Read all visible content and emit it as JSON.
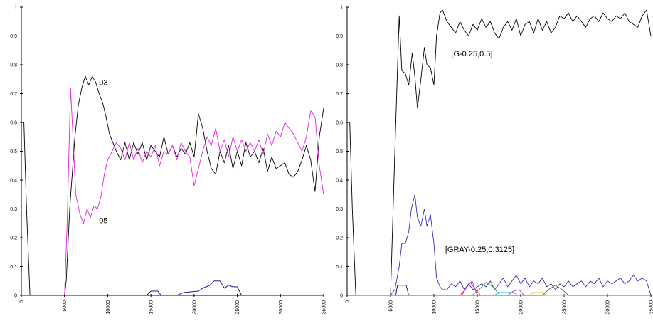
{
  "chart_data": [
    {
      "type": "line",
      "title": "",
      "xlabel": "",
      "ylabel": "",
      "xlim": [
        0,
        35000
      ],
      "ylim": [
        0,
        1
      ],
      "y_ticks": [
        "0",
        "0.1",
        "0.2",
        "0.3",
        "0.4",
        "0.5",
        "0.6",
        "0.7",
        "0.8",
        "0.9",
        "1"
      ],
      "x_ticks": [
        "0",
        "5000",
        "10000",
        "15000",
        "20000",
        "25000",
        "30000",
        "35000"
      ],
      "grid": false,
      "legend": "none",
      "annotations": [
        {
          "text": "03",
          "x": 9000,
          "y": 0.74
        },
        {
          "text": "05",
          "x": 9000,
          "y": 0.26
        }
      ],
      "series": [
        {
          "color": "#000000",
          "x": [
            0,
            300,
            600,
            1000,
            5000,
            5200,
            5600,
            6200,
            6600,
            7000,
            7400,
            7800,
            8200,
            8600,
            9000,
            9400,
            9800,
            10200,
            10600,
            11000,
            11500,
            12000,
            12500,
            13000,
            13500,
            14000,
            14500,
            15000,
            15500,
            16000,
            16500,
            17000,
            17500,
            18000,
            18500,
            19000,
            19500,
            20000,
            20500,
            21000,
            21500,
            22000,
            22500,
            23000,
            23500,
            24000,
            24500,
            25000,
            25500,
            26000,
            26500,
            27000,
            27500,
            28000,
            28500,
            29000,
            29500,
            30000,
            30500,
            31000,
            31500,
            32000,
            32500,
            33000,
            33500,
            34000,
            34500,
            35000
          ],
          "y": [
            0.6,
            0.6,
            0.3,
            0.0,
            0.0,
            0.05,
            0.3,
            0.55,
            0.66,
            0.72,
            0.76,
            0.73,
            0.76,
            0.74,
            0.7,
            0.67,
            0.62,
            0.56,
            0.53,
            0.5,
            0.47,
            0.53,
            0.47,
            0.53,
            0.49,
            0.53,
            0.47,
            0.52,
            0.5,
            0.48,
            0.55,
            0.49,
            0.52,
            0.48,
            0.51,
            0.49,
            0.53,
            0.48,
            0.63,
            0.58,
            0.5,
            0.44,
            0.42,
            0.5,
            0.46,
            0.52,
            0.44,
            0.5,
            0.45,
            0.53,
            0.48,
            0.5,
            0.46,
            0.51,
            0.43,
            0.48,
            0.44,
            0.45,
            0.46,
            0.42,
            0.41,
            0.43,
            0.47,
            0.52,
            0.47,
            0.36,
            0.55,
            0.65
          ]
        },
        {
          "color": "#e020e0",
          "x": [
            0,
            5000,
            5300,
            5700,
            6300,
            6800,
            7200,
            7600,
            8000,
            8400,
            8800,
            9200,
            9600,
            10000,
            10500,
            11000,
            11500,
            12000,
            12500,
            13000,
            13500,
            14000,
            14500,
            15000,
            15500,
            16000,
            16500,
            17000,
            17500,
            18000,
            18500,
            19000,
            19500,
            20000,
            20500,
            21000,
            21500,
            22000,
            22500,
            23000,
            23500,
            24000,
            24500,
            25000,
            25500,
            26000,
            26500,
            27000,
            27500,
            28000,
            28500,
            29000,
            29500,
            30000,
            30500,
            31000,
            31500,
            32000,
            32500,
            33000,
            33500,
            34000,
            34500,
            35000
          ],
          "y": [
            0.0,
            0.0,
            0.25,
            0.72,
            0.35,
            0.28,
            0.25,
            0.3,
            0.27,
            0.31,
            0.3,
            0.34,
            0.42,
            0.47,
            0.5,
            0.53,
            0.51,
            0.47,
            0.53,
            0.47,
            0.51,
            0.46,
            0.5,
            0.48,
            0.52,
            0.45,
            0.5,
            0.49,
            0.52,
            0.47,
            0.53,
            0.5,
            0.48,
            0.38,
            0.44,
            0.5,
            0.55,
            0.52,
            0.58,
            0.5,
            0.54,
            0.48,
            0.55,
            0.5,
            0.54,
            0.5,
            0.53,
            0.5,
            0.54,
            0.49,
            0.56,
            0.52,
            0.57,
            0.55,
            0.6,
            0.58,
            0.56,
            0.53,
            0.5,
            0.55,
            0.64,
            0.62,
            0.45,
            0.35
          ]
        },
        {
          "color": "#000080",
          "x": [
            0,
            14500,
            15000,
            15800,
            16200,
            18000,
            18800,
            20500,
            21000,
            21800,
            22300,
            23000,
            23500,
            24000,
            24500,
            25000,
            25500,
            35000
          ],
          "y": [
            0.0,
            0.0,
            0.015,
            0.015,
            0.0,
            0.0,
            0.01,
            0.015,
            0.025,
            0.035,
            0.05,
            0.05,
            0.025,
            0.035,
            0.03,
            0.03,
            0.0,
            0.0
          ]
        }
      ]
    },
    {
      "type": "line",
      "title": "",
      "xlabel": "",
      "ylabel": "",
      "xlim": [
        0,
        35000
      ],
      "ylim": [
        0,
        1
      ],
      "y_ticks": [
        "0",
        "0.1",
        "0.2",
        "0.3",
        "0.4",
        "0.5",
        "0.6",
        "0.7",
        "0.8",
        "0.9",
        "1"
      ],
      "x_ticks": [
        "0",
        "5000",
        "10000",
        "15000",
        "20000",
        "25000",
        "30000",
        "35000"
      ],
      "grid": false,
      "legend": "none",
      "annotations": [
        {
          "text": "[G-0.25,0.5]",
          "x": 12000,
          "y": 0.84
        },
        {
          "text": "[GRAY-0.25,0.3125]",
          "x": 11300,
          "y": 0.16
        }
      ],
      "series": [
        {
          "color": "#000000",
          "x": [
            0,
            300,
            600,
            1000,
            5000,
            5500,
            6000,
            6300,
            6700,
            7100,
            7500,
            7800,
            8100,
            8500,
            8900,
            9200,
            9600,
            10000,
            10300,
            10700,
            11000,
            11500,
            12000,
            12500,
            13000,
            13500,
            14000,
            14500,
            15000,
            15500,
            16000,
            16500,
            17000,
            17500,
            18000,
            18500,
            19000,
            19500,
            20000,
            20500,
            21000,
            21500,
            22000,
            22500,
            23000,
            23500,
            24000,
            24500,
            25000,
            25500,
            26000,
            26500,
            27000,
            27500,
            28000,
            28500,
            29000,
            29500,
            30000,
            30500,
            31000,
            31500,
            32000,
            32500,
            33000,
            33500,
            34000,
            34500,
            35000
          ],
          "y": [
            0.6,
            0.6,
            0.3,
            0.0,
            0.0,
            0.5,
            0.97,
            0.78,
            0.77,
            0.73,
            0.84,
            0.76,
            0.65,
            0.75,
            0.86,
            0.8,
            0.79,
            0.73,
            0.9,
            0.98,
            0.99,
            0.95,
            0.93,
            0.91,
            0.95,
            0.92,
            0.9,
            0.94,
            0.92,
            0.96,
            0.93,
            0.95,
            0.91,
            0.89,
            0.93,
            0.95,
            0.92,
            0.96,
            0.9,
            0.94,
            0.95,
            0.91,
            0.96,
            0.92,
            0.95,
            0.91,
            0.93,
            0.97,
            0.96,
            0.98,
            0.95,
            0.97,
            0.95,
            0.93,
            0.96,
            0.97,
            0.95,
            0.98,
            0.96,
            0.95,
            0.97,
            0.96,
            0.98,
            0.95,
            0.94,
            0.93,
            0.97,
            0.99,
            0.9
          ]
        },
        {
          "color": "#3030c0",
          "x": [
            0,
            5000,
            5500,
            6000,
            6300,
            6700,
            7100,
            7400,
            7800,
            8100,
            8500,
            8900,
            9200,
            9600,
            10000,
            10300,
            10700,
            11000,
            11500,
            12000,
            12500,
            13000,
            13500,
            14000,
            14500,
            15000,
            15500,
            16000,
            16500,
            17000,
            17500,
            18000,
            18500,
            19000,
            19500,
            20000,
            20500,
            21000,
            21500,
            22000,
            22500,
            23000,
            23500,
            24000,
            24500,
            25000,
            25500,
            26000,
            26500,
            27000,
            27500,
            28000,
            28500,
            29000,
            29500,
            30000,
            30500,
            31000,
            31500,
            32000,
            32500,
            33000,
            33500,
            34000,
            34500,
            35000
          ],
          "y": [
            0.0,
            0.0,
            0.02,
            0.1,
            0.18,
            0.18,
            0.22,
            0.3,
            0.35,
            0.27,
            0.24,
            0.3,
            0.24,
            0.28,
            0.18,
            0.06,
            0.03,
            0.02,
            0.02,
            0.04,
            0.03,
            0.05,
            0.02,
            0.04,
            0.02,
            0.03,
            0.04,
            0.03,
            0.05,
            0.02,
            0.04,
            0.06,
            0.03,
            0.05,
            0.07,
            0.04,
            0.06,
            0.03,
            0.05,
            0.04,
            0.06,
            0.03,
            0.04,
            0.02,
            0.04,
            0.03,
            0.05,
            0.03,
            0.04,
            0.05,
            0.03,
            0.05,
            0.04,
            0.06,
            0.03,
            0.05,
            0.04,
            0.05,
            0.06,
            0.04,
            0.05,
            0.07,
            0.05,
            0.06,
            0.05,
            0.0
          ]
        },
        {
          "color": "#000080",
          "x": [
            0,
            5600,
            5800,
            6800,
            7100,
            35000
          ],
          "y": [
            0.0,
            0.0,
            0.035,
            0.035,
            0.0,
            0.0
          ]
        },
        {
          "color": "#e02020",
          "x": [
            0,
            13000,
            13600,
            14200,
            14800,
            15400,
            35000
          ],
          "y": [
            0.0,
            0.0,
            0.02,
            0.045,
            0.02,
            0.0,
            0.0
          ]
        },
        {
          "color": "#20a020",
          "x": [
            0,
            14400,
            15200,
            16000,
            16800,
            17600,
            35000
          ],
          "y": [
            0.0,
            0.0,
            0.02,
            0.045,
            0.03,
            0.0,
            0.0
          ]
        },
        {
          "color": "#d020d0",
          "x": [
            0,
            13200,
            13800,
            14400,
            15000,
            18500,
            19200,
            19800,
            20400,
            35000
          ],
          "y": [
            0.0,
            0.0,
            0.03,
            0.05,
            0.0,
            0.0,
            0.015,
            0.02,
            0.0,
            0.0
          ]
        },
        {
          "color": "#00c0e0",
          "x": [
            0,
            17000,
            17400,
            19200,
            19600,
            35000
          ],
          "y": [
            0.0,
            0.0,
            0.01,
            0.01,
            0.0,
            0.0
          ]
        },
        {
          "color": "#e0c000",
          "x": [
            0,
            21000,
            21500,
            22500,
            23000,
            35000
          ],
          "y": [
            0.0,
            0.0,
            0.01,
            0.01,
            0.0,
            0.0
          ]
        },
        {
          "color": "#806000",
          "x": [
            0,
            22500,
            23200,
            24000,
            24800,
            25500,
            35000
          ],
          "y": [
            0.0,
            0.0,
            0.02,
            0.035,
            0.02,
            0.0,
            0.0
          ]
        }
      ]
    }
  ]
}
